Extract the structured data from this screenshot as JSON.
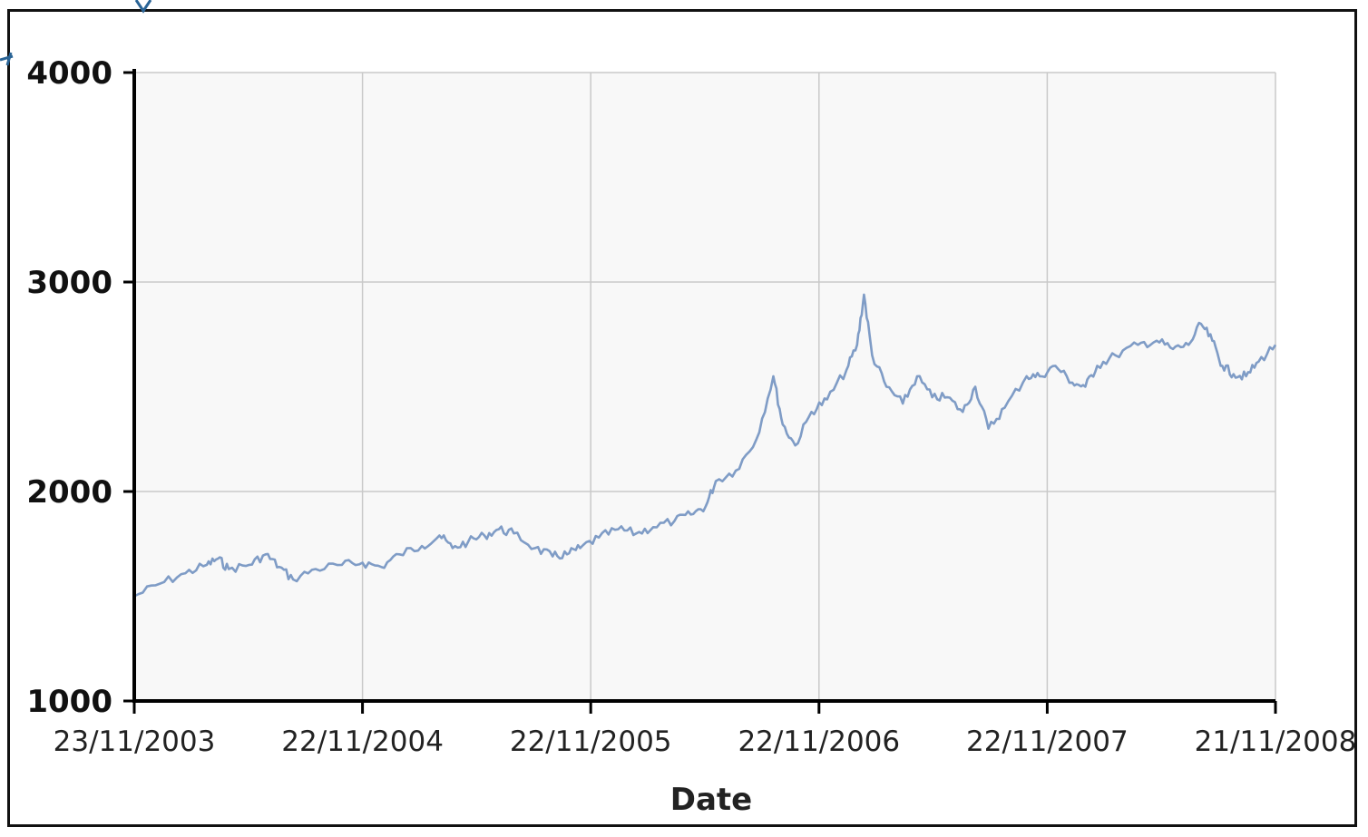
{
  "chart_data": {
    "type": "line",
    "title": "",
    "xlabel": "Date",
    "ylabel": "",
    "ylim": [
      1000,
      4000
    ],
    "yticks": [
      "1000",
      "2000",
      "3000",
      "4000"
    ],
    "xlim": [
      "2003-11-23",
      "2008-11-21"
    ],
    "xticks": [
      {
        "date": "2003-11-23",
        "label": "23/11/2003"
      },
      {
        "date": "2004-11-22",
        "label": "22/11/2004"
      },
      {
        "date": "2005-11-22",
        "label": "22/11/2005"
      },
      {
        "date": "2006-11-22",
        "label": "22/11/2006"
      },
      {
        "date": "2007-11-22",
        "label": "22/11/2007"
      },
      {
        "date": "2008-11-21",
        "label": "21/11/2008"
      }
    ],
    "grid": true,
    "series": [
      {
        "color": "#7f9cc6",
        "points": [
          [
            "2003-11-23",
            1500
          ],
          [
            "2004-01-03",
            1560
          ],
          [
            "2004-02-13",
            1610
          ],
          [
            "2004-03-18",
            1650
          ],
          [
            "2004-04-05",
            1680
          ],
          [
            "2004-04-22",
            1630
          ],
          [
            "2004-05-25",
            1650
          ],
          [
            "2004-06-20",
            1700
          ],
          [
            "2004-07-12",
            1640
          ],
          [
            "2004-08-03",
            1580
          ],
          [
            "2004-09-08",
            1630
          ],
          [
            "2004-10-20",
            1650
          ],
          [
            "2004-11-22",
            1660
          ],
          [
            "2004-12-22",
            1640
          ],
          [
            "2005-01-20",
            1700
          ],
          [
            "2005-02-25",
            1740
          ],
          [
            "2005-03-25",
            1790
          ],
          [
            "2005-04-15",
            1730
          ],
          [
            "2005-05-10",
            1760
          ],
          [
            "2005-06-05",
            1790
          ],
          [
            "2005-06-28",
            1820
          ],
          [
            "2005-07-22",
            1800
          ],
          [
            "2005-08-25",
            1730
          ],
          [
            "2005-09-22",
            1690
          ],
          [
            "2005-10-15",
            1700
          ],
          [
            "2005-11-05",
            1730
          ],
          [
            "2005-12-05",
            1780
          ],
          [
            "2006-01-05",
            1820
          ],
          [
            "2006-02-03",
            1800
          ],
          [
            "2006-03-02",
            1830
          ],
          [
            "2006-04-05",
            1860
          ],
          [
            "2006-05-01",
            1890
          ],
          [
            "2006-05-25",
            1930
          ],
          [
            "2006-06-10",
            2050
          ],
          [
            "2006-07-12",
            2100
          ],
          [
            "2006-08-14",
            2250
          ],
          [
            "2006-09-10",
            2550
          ],
          [
            "2006-09-25",
            2320
          ],
          [
            "2006-10-15",
            2220
          ],
          [
            "2006-11-10",
            2380
          ],
          [
            "2006-12-05",
            2440
          ],
          [
            "2007-01-05",
            2580
          ],
          [
            "2007-01-22",
            2700
          ],
          [
            "2007-02-02",
            2940
          ],
          [
            "2007-02-15",
            2650
          ],
          [
            "2007-03-10",
            2500
          ],
          [
            "2007-04-05",
            2420
          ],
          [
            "2007-04-28",
            2550
          ],
          [
            "2007-05-22",
            2450
          ],
          [
            "2007-06-15",
            2450
          ],
          [
            "2007-07-10",
            2380
          ],
          [
            "2007-07-30",
            2500
          ],
          [
            "2007-08-20",
            2300
          ],
          [
            "2007-09-15",
            2400
          ],
          [
            "2007-10-20",
            2550
          ],
          [
            "2007-11-10",
            2550
          ],
          [
            "2007-12-05",
            2600
          ],
          [
            "2008-01-01",
            2520
          ],
          [
            "2008-01-22",
            2500
          ],
          [
            "2008-02-10",
            2600
          ],
          [
            "2008-03-10",
            2650
          ],
          [
            "2008-04-15",
            2700
          ],
          [
            "2008-05-15",
            2720
          ],
          [
            "2008-06-10",
            2680
          ],
          [
            "2008-07-05",
            2700
          ],
          [
            "2008-07-25",
            2800
          ],
          [
            "2008-08-12",
            2720
          ],
          [
            "2008-08-28",
            2600
          ],
          [
            "2008-09-15",
            2560
          ],
          [
            "2008-10-05",
            2550
          ],
          [
            "2008-10-25",
            2620
          ],
          [
            "2008-11-21",
            2700
          ]
        ]
      }
    ]
  }
}
